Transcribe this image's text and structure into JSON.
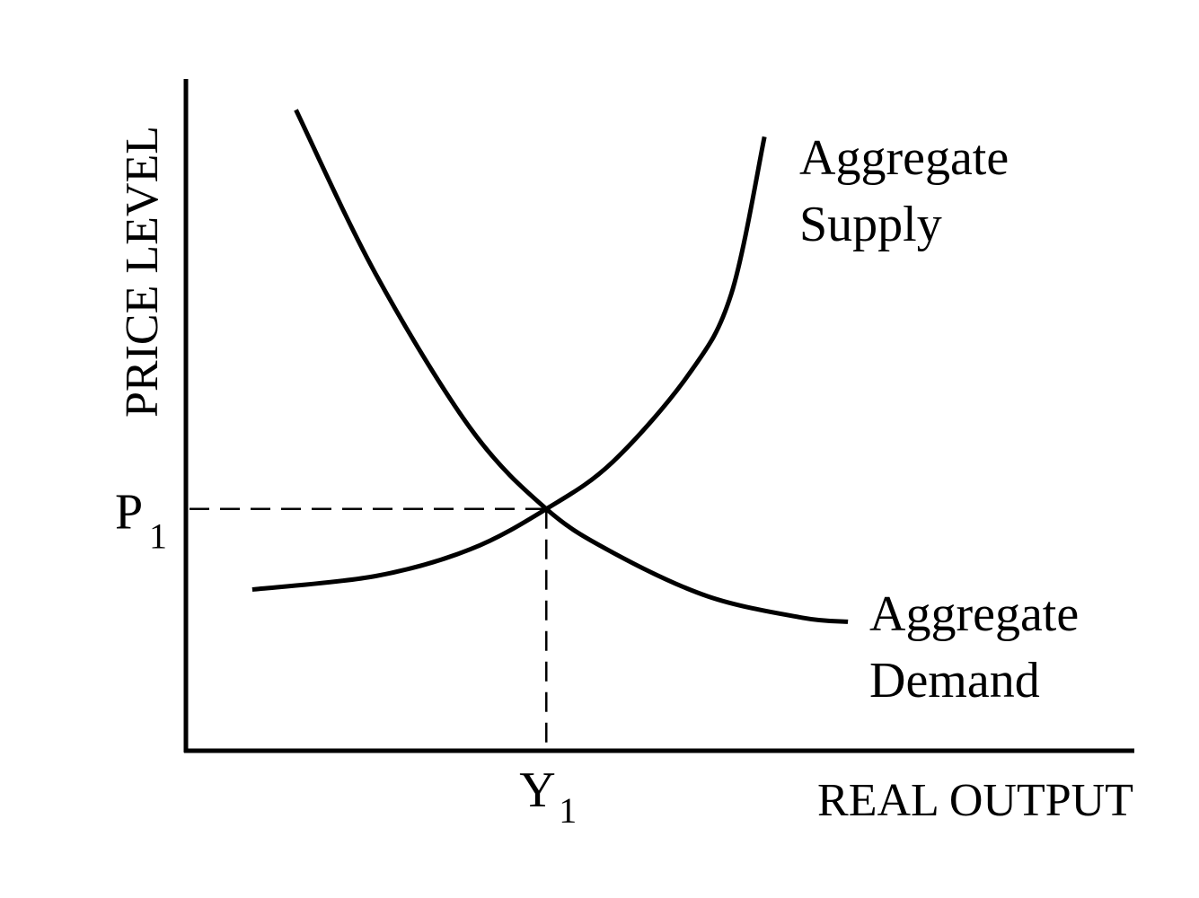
{
  "chart_data": {
    "type": "line",
    "title": "",
    "xlabel": "REAL OUTPUT",
    "ylabel": "PRICE LEVEL",
    "xlim": [
      0,
      100
    ],
    "ylim": [
      0,
      100
    ],
    "grid": false,
    "series": [
      {
        "name": "Aggregate Demand",
        "label_lines": [
          "Aggregate",
          "Demand"
        ],
        "points": [
          [
            11.6,
            95.4
          ],
          [
            20,
            71
          ],
          [
            30,
            48
          ],
          [
            38,
            36
          ],
          [
            45,
            29.5
          ],
          [
            55,
            23
          ],
          [
            65,
            19.8
          ],
          [
            69.8,
            19.2
          ]
        ]
      },
      {
        "name": "Aggregate Supply",
        "label_lines": [
          "Aggregate",
          "Supply"
        ],
        "points": [
          [
            7,
            24
          ],
          [
            20,
            26
          ],
          [
            30,
            30
          ],
          [
            38,
            36
          ],
          [
            45,
            43
          ],
          [
            53,
            56
          ],
          [
            57.5,
            68
          ],
          [
            61,
            91.4
          ]
        ]
      }
    ],
    "equilibrium": {
      "x": 38,
      "y": 36,
      "x_label_main": "Y",
      "x_label_sub": "1",
      "y_label_main": "P",
      "y_label_sub": "1"
    }
  },
  "colors": {
    "ink": "#000000",
    "background": "#ffffff"
  }
}
